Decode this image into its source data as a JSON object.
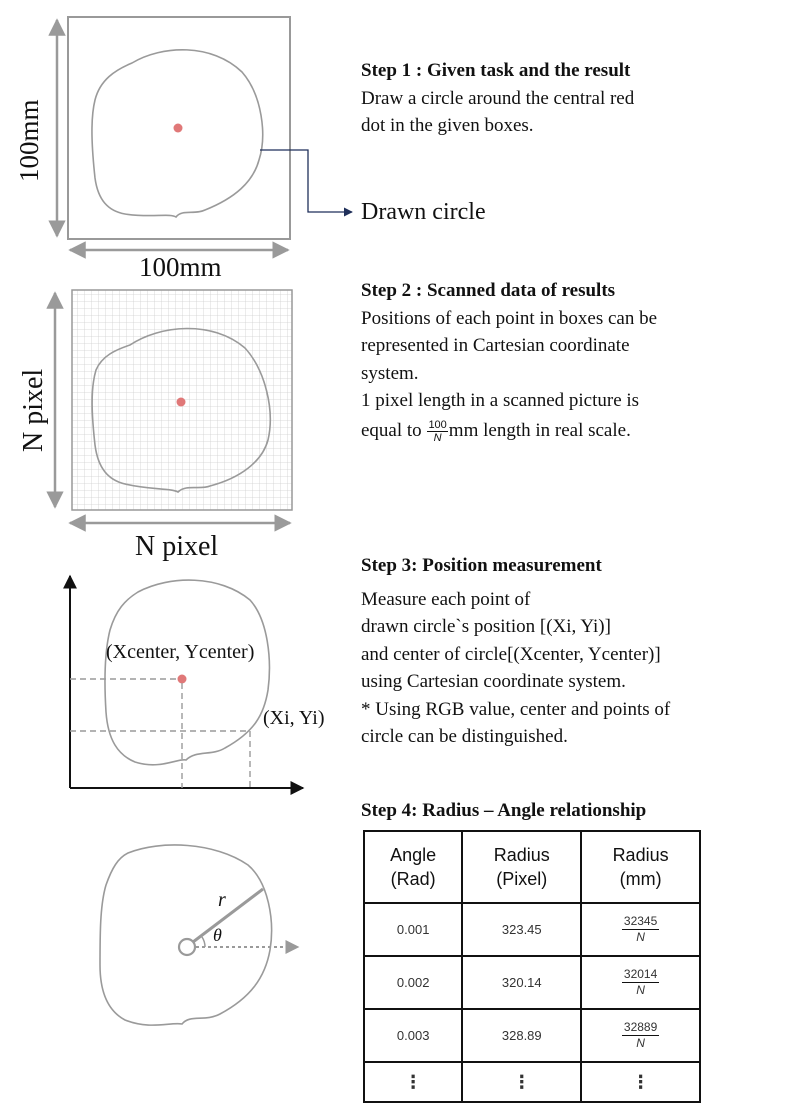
{
  "panel1": {
    "vertical_label": "100mm",
    "horizontal_label": "100mm",
    "callout_label": "Drawn  circle"
  },
  "panel2": {
    "vertical_label": "N pixel",
    "horizontal_label": "N pixel"
  },
  "panel3": {
    "center_label": "(Xcenter, Ycenter)",
    "point_label": "(Xi, Yi)"
  },
  "panel4": {
    "radius_symbol": "r",
    "angle_symbol": "θ"
  },
  "step1": {
    "title": "Step 1 : Given task and the result",
    "lines": [
      "Draw a circle around the central red",
      "dot in the given boxes."
    ]
  },
  "step2": {
    "title": "Step 2 : Scanned data of results",
    "lines": [
      "Positions of each point in boxes can be",
      "represented in Cartesian coordinate",
      "system.",
      "1 pixel length in a scanned picture is"
    ],
    "last_prefix": "equal to ",
    "frac_num": "100",
    "frac_den": "N",
    "last_suffix": "mm length in real scale."
  },
  "step3": {
    "title": "Step 3: Position measurement",
    "lines": [
      "Measure each point of",
      "drawn circle`s position [(Xi, Yi)]",
      "and center of circle[(Xcenter, Ycenter)]",
      "using Cartesian coordinate system.",
      "* Using RGB value, center and points of",
      "circle can be distinguished."
    ]
  },
  "step4": {
    "title": "Step 4: Radius – Angle relationship"
  },
  "table": {
    "headers": [
      [
        "Angle",
        "(Rad)"
      ],
      [
        "Radius",
        "(Pixel)"
      ],
      [
        "Radius",
        "(mm)"
      ]
    ],
    "rows": [
      {
        "angle": "0.001",
        "radius_px": "323.45",
        "mm_num": "32345",
        "mm_den": "N"
      },
      {
        "angle": "0.002",
        "radius_px": "320.14",
        "mm_num": "32014",
        "mm_den": "N"
      },
      {
        "angle": "0.003",
        "radius_px": "328.89",
        "mm_num": "32889",
        "mm_den": "N"
      }
    ],
    "ellipsis": "⋮"
  },
  "colors": {
    "stroke": "#9a9a9a",
    "dot": "#e07878",
    "grid": "#cfcfcf",
    "arrow": "#1f2f5a"
  }
}
